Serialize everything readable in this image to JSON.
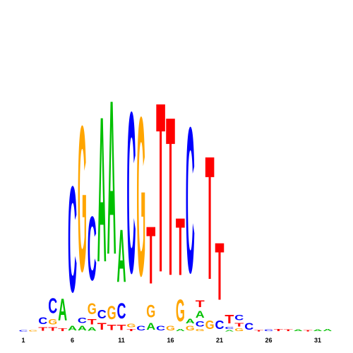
{
  "chart_data": {
    "type": "logo",
    "categories": [
      1,
      null,
      null,
      null,
      null,
      6,
      null,
      null,
      null,
      null,
      11,
      null,
      null,
      null,
      null,
      16,
      null,
      null,
      null,
      null,
      21,
      null,
      null,
      null,
      null,
      26,
      null,
      null,
      null,
      null,
      31,
      null
    ],
    "colors": {
      "A": "#00c000",
      "C": "#0000ff",
      "G": "#ffa500",
      "T": "#ff0000"
    },
    "ylim": [
      0,
      4.3
    ],
    "stacks": [
      {
        "letters": [
          "C"
        ],
        "values": [
          0.03
        ]
      },
      {
        "letters": [
          "G"
        ],
        "values": [
          0.03
        ]
      },
      {
        "letters": [
          "T",
          "C"
        ],
        "values": [
          0.08,
          0.15
        ]
      },
      {
        "letters": [
          "T",
          "G",
          "C"
        ],
        "values": [
          0.08,
          0.12,
          0.34
        ]
      },
      {
        "letters": [
          "T",
          "A"
        ],
        "values": [
          0.06,
          0.5
        ]
      },
      {
        "letters": [
          "A",
          "C"
        ],
        "values": [
          0.1,
          2.4
        ]
      },
      {
        "letters": [
          "A",
          "C",
          "G"
        ],
        "values": [
          0.1,
          0.12,
          3.3
        ]
      },
      {
        "letters": [
          "A",
          "T",
          "G",
          "C"
        ],
        "values": [
          0.08,
          0.12,
          0.25,
          1.45
        ]
      },
      {
        "letters": [
          "T",
          "C",
          "A"
        ],
        "values": [
          0.15,
          0.2,
          3.3
        ]
      },
      {
        "letters": [
          "T",
          "G",
          "A"
        ],
        "values": [
          0.12,
          0.3,
          3.5
        ]
      },
      {
        "letters": [
          "T",
          "C",
          "A"
        ],
        "values": [
          0.12,
          0.35,
          1.2
        ]
      },
      {
        "letters": [
          "T",
          "G",
          "C"
        ],
        "values": [
          0.05,
          0.08,
          3.65
        ]
      },
      {
        "letters": [
          "C",
          "G"
        ],
        "values": [
          0.1,
          3.6
        ]
      },
      {
        "letters": [
          "A",
          "G",
          "T"
        ],
        "values": [
          0.15,
          0.28,
          1.3
        ]
      },
      {
        "letters": [
          "C",
          "T"
        ],
        "values": [
          0.1,
          3.85
        ]
      },
      {
        "letters": [
          "G",
          "T"
        ],
        "values": [
          0.1,
          3.6
        ]
      },
      {
        "letters": [
          "A",
          "G",
          "T"
        ],
        "values": [
          0.05,
          0.5,
          1.3
        ]
      },
      {
        "letters": [
          "G",
          "A",
          "C"
        ],
        "values": [
          0.1,
          0.1,
          3.3
        ]
      },
      {
        "letters": [
          "G",
          "C",
          "A",
          "T"
        ],
        "values": [
          0.05,
          0.12,
          0.15,
          0.15
        ]
      },
      {
        "letters": [
          "G",
          "T"
        ],
        "values": [
          0.2,
          2.8
        ]
      },
      {
        "letters": [
          "C",
          "T"
        ],
        "values": [
          0.2,
          1.3
        ]
      },
      {
        "letters": [
          "A",
          "C",
          "T"
        ],
        "values": [
          0.03,
          0.05,
          0.2
        ]
      },
      {
        "letters": [
          "G",
          "T",
          "C"
        ],
        "values": [
          0.06,
          0.08,
          0.12
        ]
      },
      {
        "letters": [
          "C"
        ],
        "values": [
          0.15
        ]
      },
      {
        "letters": [
          "T"
        ],
        "values": [
          0.03
        ]
      },
      {
        "letters": [
          "C"
        ],
        "values": [
          0.04
        ]
      },
      {
        "letters": [
          "T"
        ],
        "values": [
          0.05
        ]
      },
      {
        "letters": [
          "T"
        ],
        "values": [
          0.04
        ]
      },
      {
        "letters": [
          "A"
        ],
        "values": [
          0.04
        ]
      },
      {
        "letters": [
          "T"
        ],
        "values": [
          0.03
        ]
      },
      {
        "letters": [
          "A"
        ],
        "values": [
          0.04
        ]
      },
      {
        "letters": [
          "A"
        ],
        "values": [
          0.05
        ]
      }
    ]
  }
}
